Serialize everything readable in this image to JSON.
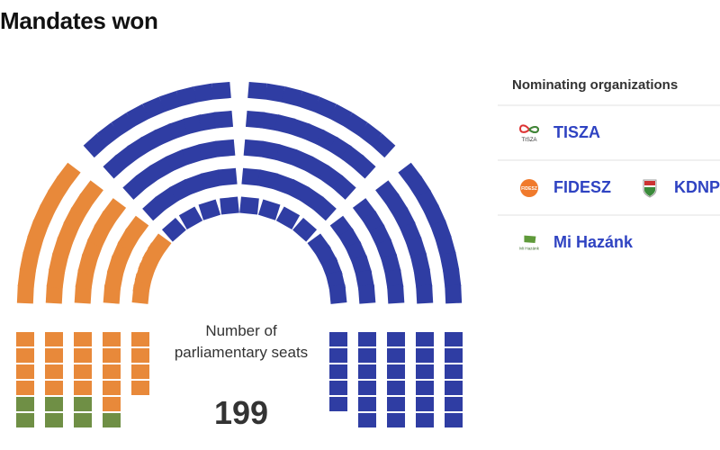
{
  "title": "Mandates won",
  "center": {
    "label": "Number of parliamentary seats",
    "total": "199"
  },
  "legend": {
    "title": "Nominating organizations",
    "rows": [
      [
        {
          "name": "TISZA",
          "icon": "tisza-logo-icon",
          "logo_text": "TISZA"
        }
      ],
      [
        {
          "name": "FIDESZ",
          "icon": "fidesz-logo-icon",
          "logo_text": "FIDESZ"
        },
        {
          "name": "KDNP",
          "icon": "kdnp-logo-icon"
        }
      ],
      [
        {
          "name": "Mi Hazánk",
          "icon": "mi-hazank-logo-icon",
          "logo_text": "Mi Hazánk"
        }
      ]
    ]
  },
  "chart_data": {
    "type": "parliament",
    "title": "Mandates won",
    "total": 199,
    "series": [
      {
        "name": "Mi Hazánk",
        "value": 7,
        "color": "#6f8f45"
      },
      {
        "name": "FIDESZ-KDNP",
        "value": 57,
        "color": "#e8893a"
      },
      {
        "name": "TISZA",
        "value": 135,
        "color": "#2f3da3"
      }
    ]
  }
}
